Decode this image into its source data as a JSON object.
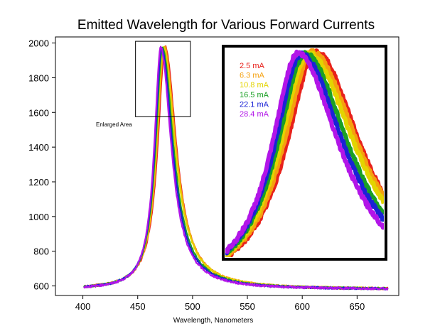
{
  "chart_data": {
    "type": "line",
    "title": "Emitted Wavelength for Various Forward Currents",
    "xlabel": "Wavelength, Nanometers",
    "ylabel": "",
    "xlim": [
      375,
      688
    ],
    "ylim": [
      545,
      2035
    ],
    "xticks": [
      400,
      450,
      500,
      550,
      600,
      650
    ],
    "yticks": [
      600,
      800,
      1000,
      1200,
      1400,
      1600,
      1800,
      2000
    ],
    "grid": false,
    "baseline": 580,
    "annotation": "Enlarged Area",
    "enlarged_area": {
      "x": [
        448,
        498
      ],
      "y": [
        1575,
        2010
      ]
    },
    "inset": {
      "x": [
        455,
        490
      ],
      "y": [
        700,
        1920
      ]
    },
    "series": [
      {
        "name": "2.5 mA",
        "color": "#e8211b",
        "peak_x": 475.0,
        "peak_y": 1980,
        "width_left": 8.2,
        "width_right": 12.4
      },
      {
        "name": "6.3 mA",
        "color": "#f5a10f",
        "peak_x": 474.2,
        "peak_y": 1980,
        "width_left": 8.0,
        "width_right": 12.8
      },
      {
        "name": "10.8 mA",
        "color": "#e3d400",
        "peak_x": 473.4,
        "peak_y": 1975,
        "width_left": 7.9,
        "width_right": 12.9
      },
      {
        "name": "16.5 mA",
        "color": "#1aa024",
        "peak_x": 472.6,
        "peak_y": 1972,
        "width_left": 7.7,
        "width_right": 12.2
      },
      {
        "name": "22.1 mA",
        "color": "#1a22d6",
        "peak_x": 471.8,
        "peak_y": 1968,
        "width_left": 7.5,
        "width_right": 12.0
      },
      {
        "name": "28.4 mA",
        "color": "#b215e8",
        "peak_x": 471.0,
        "peak_y": 1975,
        "width_left": 7.2,
        "width_right": 11.6
      }
    ]
  }
}
